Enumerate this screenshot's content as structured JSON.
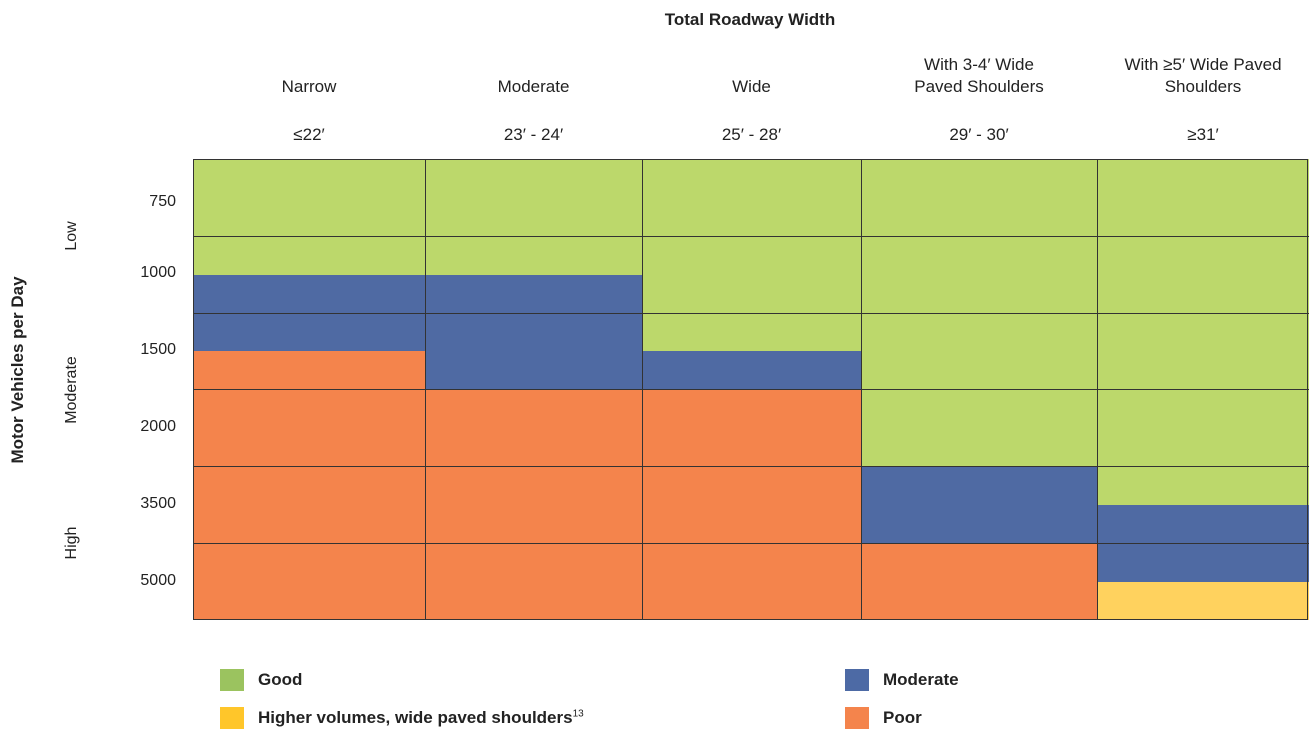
{
  "title": "Total Roadway Width",
  "y_axis_title": "Motor Vehicles per Day",
  "columns": [
    {
      "label": [
        "Narrow"
      ],
      "width": "≤22′"
    },
    {
      "label": [
        "Moderate"
      ],
      "width": "23′ - 24′"
    },
    {
      "label": [
        "Wide"
      ],
      "width": "25′ - 28′"
    },
    {
      "label": [
        "With 3-4′ Wide",
        "Paved Shoulders"
      ],
      "width": "29′ - 30′"
    },
    {
      "label": [
        "With ≥5′ Wide Paved",
        "Shoulders"
      ],
      "width": "≥31′"
    }
  ],
  "rows": [
    750,
    1000,
    1500,
    2000,
    3500,
    5000
  ],
  "levels": [
    "Low",
    "Moderate",
    "High"
  ],
  "legend": [
    {
      "label": "Good"
    },
    {
      "label": "Moderate"
    },
    {
      "label": "Higher volumes, wide paved shoulders",
      "footnote": "13"
    },
    {
      "label": "Poor"
    }
  ]
}
